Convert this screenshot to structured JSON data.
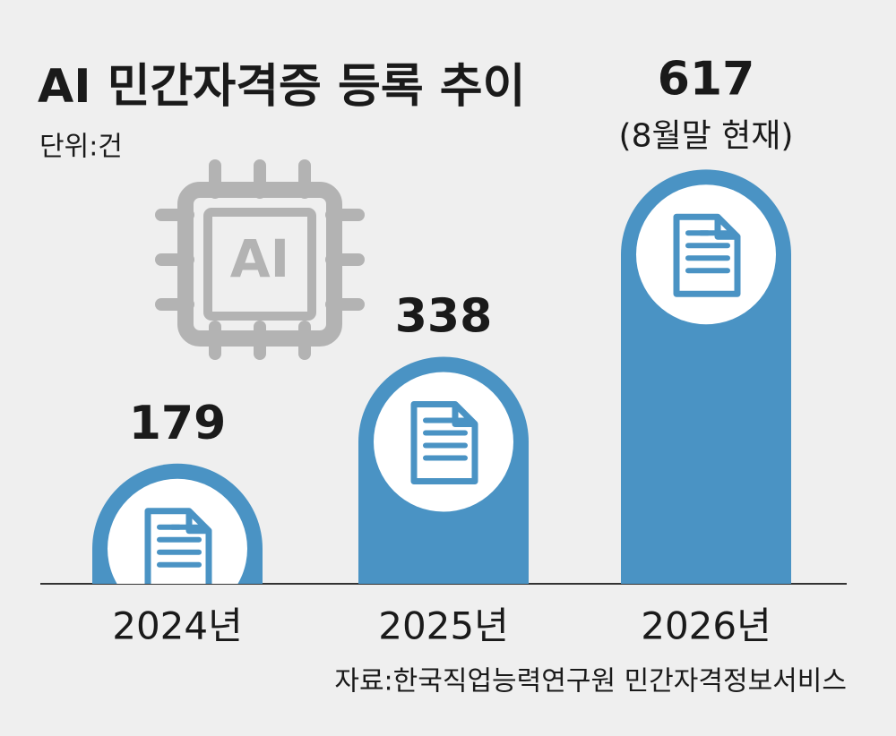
{
  "chart_data": {
    "type": "bar",
    "title": "AI 민간자격증 등록 추이",
    "subtitle": "단위:건",
    "icon_text": "AI",
    "categories": [
      "2024년",
      "2025년",
      "2026년"
    ],
    "values": [
      179,
      338,
      617
    ],
    "value_notes": [
      null,
      null,
      "(8월말 현재)"
    ],
    "color": "#4a93c4",
    "ylim": [
      0,
      800
    ],
    "source": "자료:한국직업능력연구원 민간자격정보서비스"
  }
}
